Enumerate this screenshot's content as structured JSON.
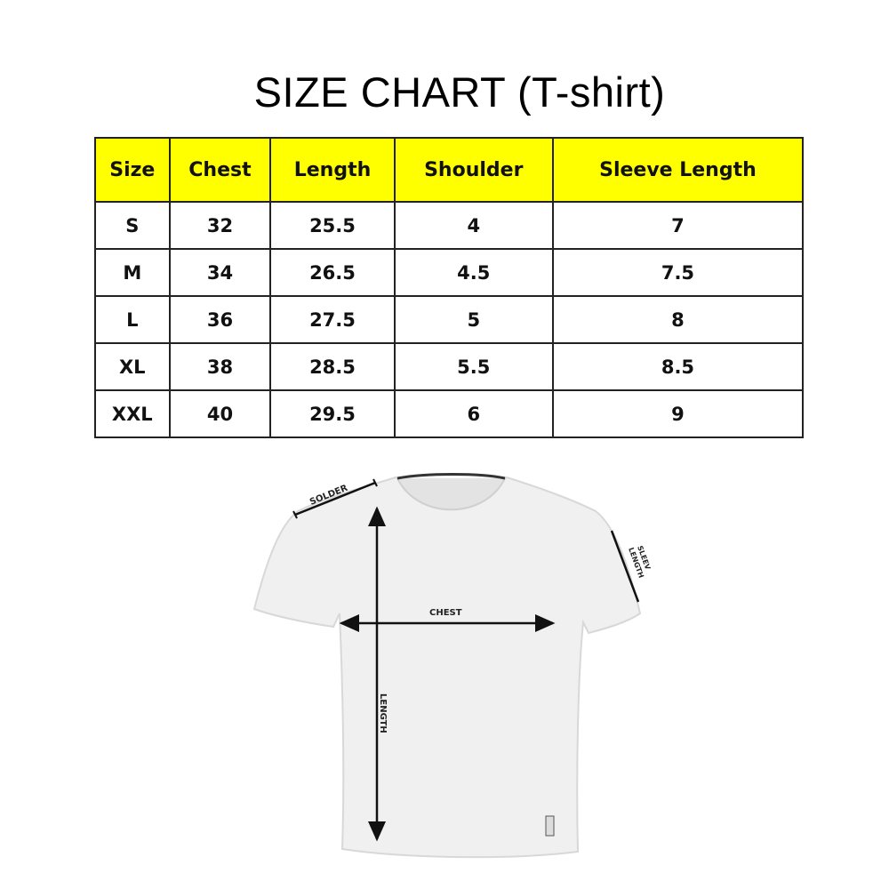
{
  "title": "SIZE CHART (T-shirt)",
  "table": {
    "headers": [
      "Size",
      "Chest",
      "Length",
      "Shoulder",
      "Sleeve Length"
    ],
    "rows": [
      [
        "S",
        "32",
        "25.5",
        "4",
        "7"
      ],
      [
        "M",
        "34",
        "26.5",
        "4.5",
        "7.5"
      ],
      [
        "L",
        "36",
        "27.5",
        "5",
        "8"
      ],
      [
        "XL",
        "38",
        "28.5",
        "5.5",
        "8.5"
      ],
      [
        "XXL",
        "40",
        "29.5",
        "6",
        "9"
      ]
    ]
  },
  "diagram": {
    "labels": {
      "shoulder": "SOLDER",
      "chest": "CHEST",
      "length": "LENGTH",
      "sleeve_1": "SLEEV",
      "sleeve_2": "LENGTH"
    }
  },
  "colors": {
    "header_bg": "#ffff00"
  }
}
